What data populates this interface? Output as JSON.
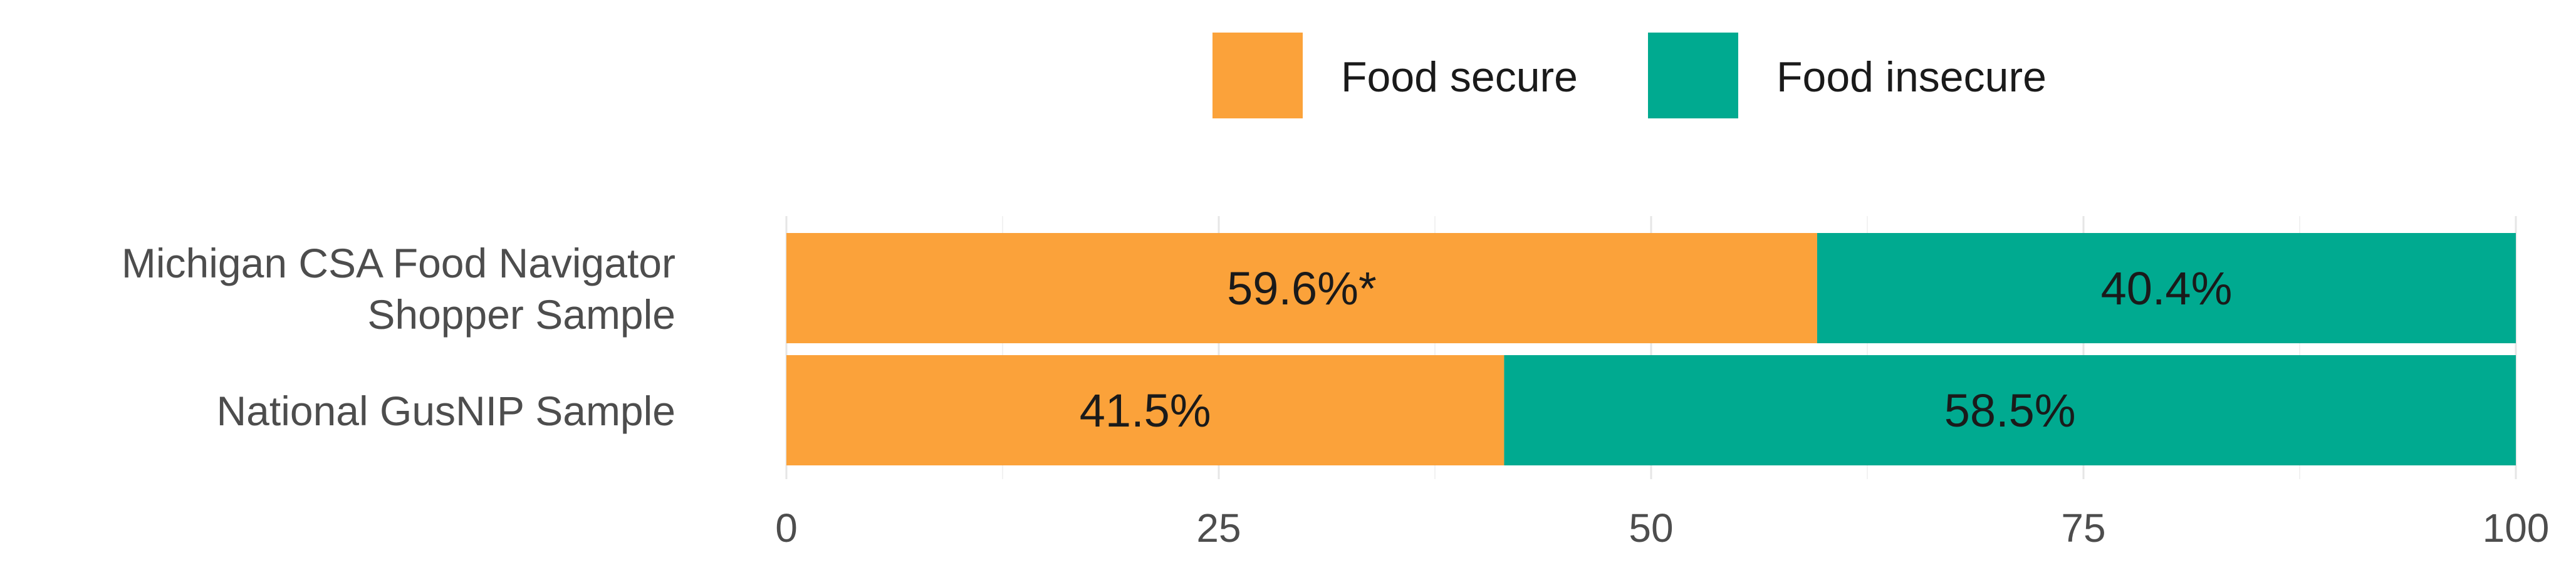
{
  "chart_data": {
    "type": "bar",
    "orientation": "horizontal",
    "stacked": true,
    "categories": [
      "Michigan CSA Food Navigator Shopper Sample",
      "National GusNIP Sample"
    ],
    "category_lines": [
      [
        "Michigan CSA Food Navigator",
        "Shopper Sample"
      ],
      [
        "National GusNIP Sample"
      ]
    ],
    "series": [
      {
        "name": "Food secure",
        "color": "#FBA23A",
        "values": [
          59.6,
          41.5
        ],
        "labels": [
          "59.6%*",
          "41.5%"
        ]
      },
      {
        "name": "Food insecure",
        "color": "#00AA90",
        "values": [
          40.4,
          58.5
        ],
        "labels": [
          "40.4%",
          "58.5%"
        ]
      }
    ],
    "x_ticks": [
      "0",
      "25",
      "50",
      "75",
      "100"
    ],
    "xlim": [
      0,
      100
    ],
    "title": "",
    "xlabel": "",
    "ylabel": "",
    "grid": true,
    "legend_position": "top"
  }
}
